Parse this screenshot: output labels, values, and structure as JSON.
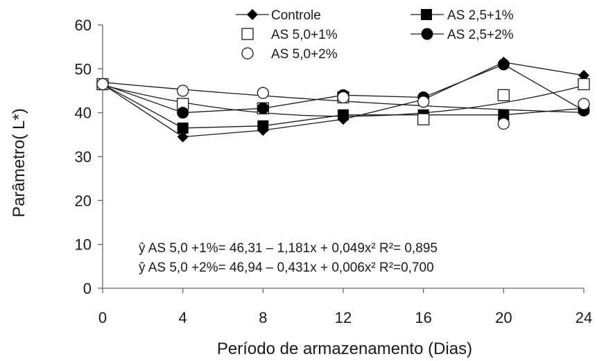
{
  "chart_data": {
    "type": "line",
    "xlabel": "Período de armazenamento (Dias)",
    "ylabel": "Parâmetro( L*)",
    "x": [
      0,
      4,
      8,
      12,
      16,
      20,
      24
    ],
    "xticks": [
      "0",
      "4",
      "8",
      "12",
      "16",
      "20",
      "24"
    ],
    "yticks": [
      "0",
      "10",
      "20",
      "30",
      "40",
      "50",
      "60"
    ],
    "xlim": [
      0,
      24
    ],
    "ylim": [
      0,
      60
    ],
    "grid": false,
    "legend_position": "top",
    "series": [
      {
        "name": "Controle",
        "marker": "diamond-filled",
        "values": [
          46.5,
          34.5,
          36.0,
          38.5,
          43.0,
          51.5,
          48.5
        ]
      },
      {
        "name": "AS 2,5+1%",
        "marker": "square-filled",
        "values": [
          46.5,
          36.5,
          37.0,
          39.5,
          39.5,
          39.5,
          41.0
        ]
      },
      {
        "name": "AS 5,0+1%",
        "marker": "square-open",
        "values": [
          46.5,
          42.0,
          41.0,
          43.5,
          38.5,
          44.0,
          46.5
        ]
      },
      {
        "name": "AS 2,5+2%",
        "marker": "circle-filled",
        "values": [
          46.5,
          40.0,
          41.0,
          44.0,
          43.5,
          51.0,
          40.5
        ]
      },
      {
        "name": "AS 5,0+2%",
        "marker": "circle-open",
        "values": [
          46.5,
          45.0,
          44.5,
          43.5,
          42.5,
          37.5,
          42.0
        ]
      }
    ],
    "fitted_curves": [
      {
        "series": "AS 5,0+1%",
        "a": 46.31,
        "b": -1.181,
        "c": 0.049
      },
      {
        "series": "AS 5,0+2%",
        "a": 46.94,
        "b": -0.431,
        "c": 0.006
      }
    ],
    "annotations": [
      "ŷ AS 5,0 +1%= 46,31 – 1,181x + 0,049x² R²= 0,895",
      "ŷ AS 5,0 +2%= 46,94 – 0,431x + 0,006x² R²=0,700"
    ],
    "colors": {
      "line": "#1a1a1a",
      "marker": "#000000",
      "axis": "#666666"
    }
  }
}
